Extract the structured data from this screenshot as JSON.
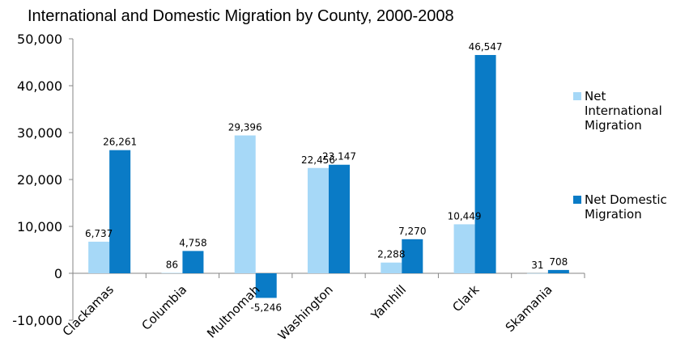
{
  "chart_data": {
    "type": "bar",
    "title": "International and Domestic Migration by County, 2000-2008",
    "categories": [
      "Clackamas",
      "Columbia",
      "Multnomah",
      "Washington",
      "Yamhill",
      "Clark",
      "Skamania"
    ],
    "series": [
      {
        "name": "Net International Migration",
        "color": "#a6d8f7",
        "values": [
          6737,
          86,
          29396,
          22456,
          2288,
          10449,
          31
        ],
        "labels": [
          "6,737",
          "86",
          "29,396",
          "22,456",
          "2,288",
          "10,449",
          "31"
        ]
      },
      {
        "name": "Net Domestic Migration",
        "color": "#0a7bc6",
        "values": [
          26261,
          4758,
          -5246,
          23147,
          7270,
          46547,
          708
        ],
        "labels": [
          "26,261",
          "4,758",
          "-5,246",
          "23,147",
          "7,270",
          "46,547",
          "708"
        ]
      }
    ],
    "ylim": [
      -10000,
      50000
    ],
    "yticks": [
      -10000,
      0,
      10000,
      20000,
      30000,
      40000,
      50000
    ],
    "ytick_labels": [
      "-10,000",
      "0",
      "10,000",
      "20,000",
      "30,000",
      "40,000",
      "50,000"
    ],
    "grid": false,
    "legend_position": "right",
    "xlabel": "",
    "ylabel": ""
  }
}
